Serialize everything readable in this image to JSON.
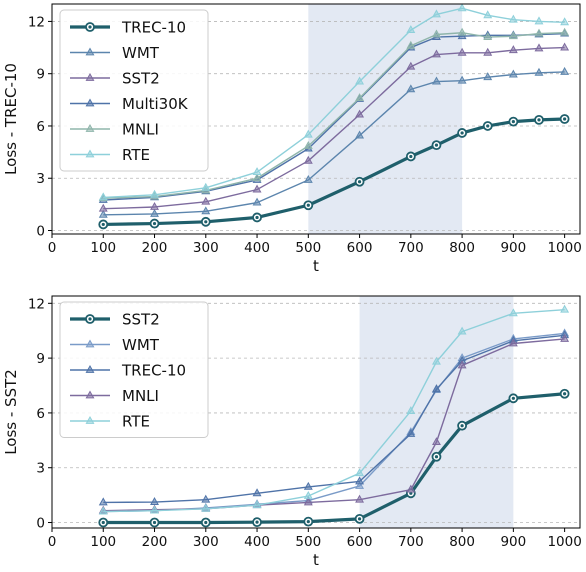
{
  "chart_data": [
    {
      "type": "line",
      "xlabel": "t",
      "ylabel": "Loss - TREC-10",
      "x": [
        100,
        200,
        300,
        400,
        500,
        600,
        700,
        750,
        800,
        850,
        900,
        950,
        1000
      ],
      "xticks": [
        0,
        100,
        200,
        300,
        400,
        500,
        600,
        700,
        800,
        900,
        1000
      ],
      "yticks": [
        0,
        3,
        6,
        9,
        12
      ],
      "xlim": [
        0,
        1030
      ],
      "ylim": [
        -0.2,
        13.0
      ],
      "grid": "horizontal dashed",
      "legend_position": "top-left",
      "shaded_span": [
        500,
        800
      ],
      "series": [
        {
          "name": "TREC-10",
          "color": "#1f5f6b",
          "marker": "circle",
          "emphasis": true,
          "values": [
            0.35,
            0.4,
            0.5,
            0.75,
            1.45,
            2.8,
            4.25,
            4.9,
            5.6,
            6.0,
            6.25,
            6.35,
            6.4
          ]
        },
        {
          "name": "WMT",
          "color": "#5c85ad",
          "marker": "triangle",
          "values": [
            0.9,
            0.95,
            1.1,
            1.6,
            2.9,
            5.45,
            8.1,
            8.55,
            8.6,
            8.8,
            8.95,
            9.05,
            9.1
          ]
        },
        {
          "name": "SST2",
          "color": "#7d6b9e",
          "marker": "triangle",
          "values": [
            1.25,
            1.35,
            1.65,
            2.35,
            4.0,
            6.65,
            9.4,
            10.1,
            10.2,
            10.2,
            10.35,
            10.45,
            10.5
          ]
        },
        {
          "name": "Multi30K",
          "color": "#4f73a8",
          "marker": "triangle",
          "values": [
            1.75,
            1.9,
            2.25,
            2.9,
            4.7,
            7.55,
            10.5,
            11.1,
            11.15,
            11.2,
            11.2,
            11.25,
            11.3
          ]
        },
        {
          "name": "MNLI",
          "color": "#8fb5ab",
          "marker": "triangle",
          "values": [
            1.85,
            1.95,
            2.3,
            3.0,
            4.85,
            7.6,
            10.6,
            11.25,
            11.35,
            11.1,
            11.15,
            11.3,
            11.35
          ]
        },
        {
          "name": "RTE",
          "color": "#8ed0da",
          "marker": "triangle",
          "values": [
            1.9,
            2.05,
            2.45,
            3.35,
            5.5,
            8.55,
            11.5,
            12.4,
            12.75,
            12.35,
            12.1,
            12.0,
            11.95
          ]
        }
      ]
    },
    {
      "type": "line",
      "xlabel": "t",
      "ylabel": "Loss - SST2",
      "x": [
        100,
        200,
        300,
        400,
        500,
        600,
        700,
        750,
        800,
        900,
        1000
      ],
      "xticks": [
        0,
        100,
        200,
        300,
        400,
        500,
        600,
        700,
        800,
        900,
        1000
      ],
      "yticks": [
        0,
        3,
        6,
        9,
        12
      ],
      "xlim": [
        0,
        1030
      ],
      "ylim": [
        -0.3,
        12.4
      ],
      "grid": "horizontal dashed",
      "legend_position": "top-left",
      "shaded_span": [
        600,
        900
      ],
      "series": [
        {
          "name": "SST2",
          "color": "#1f5f6b",
          "marker": "circle",
          "emphasis": true,
          "values": [
            0.0,
            0.0,
            0.0,
            0.02,
            0.05,
            0.2,
            1.6,
            3.6,
            5.3,
            6.8,
            7.05
          ]
        },
        {
          "name": "WMT",
          "color": "#7a9bc8",
          "marker": "triangle",
          "values": [
            0.6,
            0.65,
            0.8,
            1.0,
            1.2,
            2.0,
            4.95,
            7.25,
            9.0,
            10.05,
            10.35
          ]
        },
        {
          "name": "TREC-10",
          "color": "#4f73a8",
          "marker": "triangle",
          "values": [
            1.1,
            1.12,
            1.25,
            1.6,
            1.95,
            2.25,
            4.85,
            7.3,
            8.85,
            9.95,
            10.25
          ]
        },
        {
          "name": "MNLI",
          "color": "#7d6b9e",
          "marker": "triangle",
          "values": [
            0.65,
            0.7,
            0.75,
            0.95,
            1.1,
            1.25,
            1.8,
            4.4,
            8.6,
            9.8,
            10.05
          ]
        },
        {
          "name": "RTE",
          "color": "#8ed0da",
          "marker": "triangle",
          "values": [
            0.6,
            0.65,
            0.75,
            0.95,
            1.45,
            2.7,
            6.1,
            8.8,
            10.45,
            11.45,
            11.65
          ]
        }
      ]
    }
  ]
}
